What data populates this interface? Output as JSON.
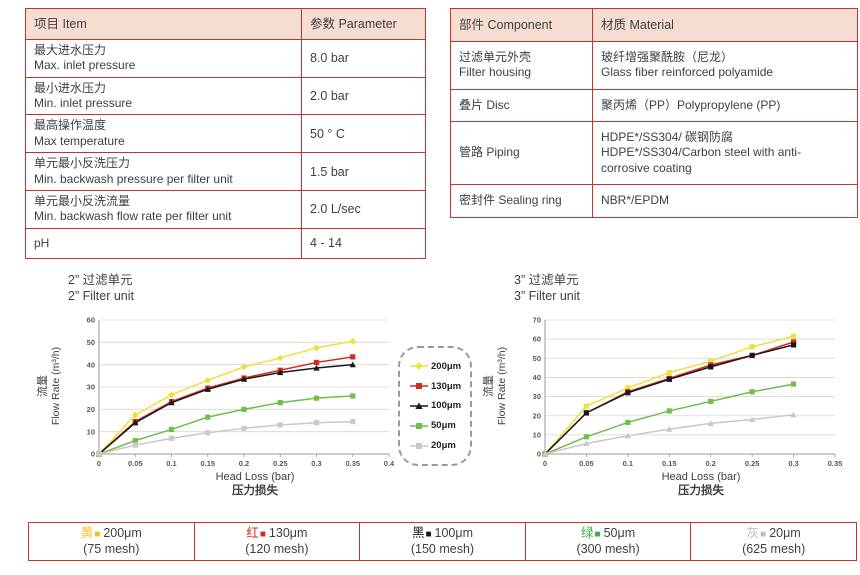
{
  "specs_table": {
    "headers": [
      "项目 Item",
      "参数 Parameter"
    ],
    "rows": [
      {
        "item_zh": "最大进水压力",
        "item_en": "Max. inlet pressure",
        "value": "8.0 bar"
      },
      {
        "item_zh": "最小进水压力",
        "item_en": "Min. inlet pressure",
        "value": "2.0 bar"
      },
      {
        "item_zh": "最高操作温度",
        "item_en": "Max temperature",
        "value": "50 ° C"
      },
      {
        "item_zh": "单元最小反洗压力",
        "item_en": "Min. backwash pressure per filter unit",
        "value": "1.5 bar"
      },
      {
        "item_zh": "单元最小反洗流量",
        "item_en": "Min. backwash flow rate per filter unit",
        "value": "2.0 L/sec"
      },
      {
        "item_zh": "pH",
        "item_en": "",
        "value": "4 - 14"
      }
    ]
  },
  "materials_table": {
    "headers": [
      "部件 Component",
      "材质 Material"
    ],
    "rows": [
      {
        "component_zh": "过滤单元外壳",
        "component_en": "Filter housing",
        "material_zh": "玻纤增强聚酰胺（尼龙）",
        "material_en": "Glass fiber reinforced polyamide"
      },
      {
        "component_zh": "叠片 Disc",
        "component_en": "",
        "material_zh": "聚丙烯（PP）Polypropylene (PP)",
        "material_en": ""
      },
      {
        "component_zh": "管路 Piping",
        "component_en": "",
        "material_zh": "HDPE*/SS304/ 碳钢防腐",
        "material_en": "HDPE*/SS304/Carbon steel with anti-corrosive coating"
      },
      {
        "component_zh": "密封件 Sealing ring",
        "component_en": "",
        "material_zh": "NBR*/EPDM",
        "material_en": ""
      }
    ]
  },
  "charts_section": {
    "left_title_zh": "2”  过滤单元",
    "left_title_en": "2”  Filter unit",
    "right_title_zh": "3”  过滤单元",
    "right_title_en": "3”  Filter unit",
    "ylabel_zh": "流量",
    "ylabel_en": "Flow Rate (m³/h)",
    "xlabel_en": "Head Loss (bar)",
    "xlabel_zh": "压力损失"
  },
  "chart_data": [
    {
      "type": "line",
      "title": "2” Filter unit 过滤单元",
      "xlabel": "Head Loss (bar) 压力损失",
      "ylabel": "流量 Flow Rate (m³/h)",
      "xlim": [
        0,
        0.4
      ],
      "ylim": [
        0,
        60
      ],
      "xticks": [
        0,
        0.05,
        0.1,
        0.15,
        0.2,
        0.25,
        0.3,
        0.35,
        0.4
      ],
      "yticks": [
        0,
        10,
        20,
        30,
        40,
        50,
        60
      ],
      "grid": true,
      "legend_position": "right-outside-dashed-box",
      "x": [
        0,
        0.05,
        0.1,
        0.15,
        0.2,
        0.25,
        0.3,
        0.35
      ],
      "series": [
        {
          "name": "200μm",
          "color": "#EDE23B",
          "marker": "diamond",
          "values": [
            0,
            17.5,
            26.5,
            33,
            39,
            43,
            47.5,
            50.5
          ]
        },
        {
          "name": "130μm",
          "color": "#D22B1F",
          "marker": "square",
          "values": [
            0,
            14.5,
            23.5,
            29.5,
            34,
            37.5,
            41,
            43.5
          ]
        },
        {
          "name": "100μm",
          "color": "#1A1A1A",
          "marker": "triangle",
          "values": [
            0,
            14,
            23,
            29,
            33.5,
            36.5,
            38.5,
            40
          ]
        },
        {
          "name": "50μm",
          "color": "#71BE4A",
          "marker": "square",
          "values": [
            0,
            6,
            11,
            16.5,
            20,
            23,
            25,
            26
          ]
        },
        {
          "name": "20μm",
          "color": "#C9C9C9",
          "marker": "square",
          "values": [
            0,
            4,
            7,
            9.5,
            11.5,
            13,
            14,
            14.5
          ]
        }
      ]
    },
    {
      "type": "line",
      "title": "3” Filter unit 过滤单元",
      "xlabel": "Head Loss (bar) 压力损失",
      "ylabel": "流量 Flow Rate (m³/h)",
      "xlim": [
        0,
        0.35
      ],
      "ylim": [
        0,
        70
      ],
      "xticks": [
        0,
        0.05,
        0.1,
        0.15,
        0.2,
        0.25,
        0.3,
        0.35
      ],
      "yticks": [
        0,
        10,
        20,
        30,
        40,
        50,
        60,
        70
      ],
      "grid": true,
      "legend_position": "left-outside-dashed-box",
      "x": [
        0,
        0.05,
        0.1,
        0.15,
        0.2,
        0.25,
        0.3
      ],
      "series": [
        {
          "name": "200μm",
          "color": "#EDE23B",
          "marker": "square",
          "values": [
            0,
            25,
            34.5,
            42.5,
            48.5,
            56,
            61.5
          ]
        },
        {
          "name": "130μm",
          "color": "#D22B1F",
          "marker": "square",
          "values": [
            0,
            21.5,
            32.5,
            39.5,
            46.5,
            51.5,
            58.5
          ]
        },
        {
          "name": "100μm",
          "color": "#1A1A1A",
          "marker": "square",
          "values": [
            0,
            21.5,
            32,
            39,
            45.5,
            51.5,
            57
          ]
        },
        {
          "name": "50μm",
          "color": "#71BE4A",
          "marker": "square",
          "values": [
            0,
            9,
            16.5,
            22.5,
            27.5,
            32.5,
            36.5
          ]
        },
        {
          "name": "20μm",
          "color": "#C9C9C9",
          "marker": "triangle",
          "values": [
            0,
            5.5,
            9.5,
            13,
            16,
            18,
            20.5
          ]
        }
      ]
    }
  ],
  "chart_legend": {
    "items": [
      {
        "label": "200μm",
        "color": "#EDE23B",
        "marker": "diamond"
      },
      {
        "label": "130μm",
        "color": "#D22B1F",
        "marker": "square"
      },
      {
        "label": "100μm",
        "color": "#1A1A1A",
        "marker": "triangle"
      },
      {
        "label": "50μm",
        "color": "#71BE4A",
        "marker": "square"
      },
      {
        "label": "20μm",
        "color": "#C9C9C9",
        "marker": "square"
      }
    ]
  },
  "bottom_legend": {
    "cells": [
      {
        "name_zh": "黄",
        "color": "#F0C419",
        "size": "200μm",
        "mesh": "(75 mesh)"
      },
      {
        "name_zh": "红",
        "color": "#E0261B",
        "size": "130μm",
        "mesh": "(120 mesh)"
      },
      {
        "name_zh": "黑",
        "color": "#1A1A1A",
        "size": "100μm",
        "mesh": "(150 mesh)"
      },
      {
        "name_zh": "绿",
        "color": "#3DAE49",
        "size": "50μm",
        "mesh": "(300 mesh)"
      },
      {
        "name_zh": "灰",
        "color": "#BFBFBF",
        "size": "20μm",
        "mesh": "(625 mesh)"
      }
    ]
  },
  "icons": {
    "square": "■"
  },
  "colors": {
    "table_border": "#C0362C",
    "header_fill": "#F5DDD1",
    "gridline": "#D6D6D6",
    "axis": "#9A9A9A"
  }
}
